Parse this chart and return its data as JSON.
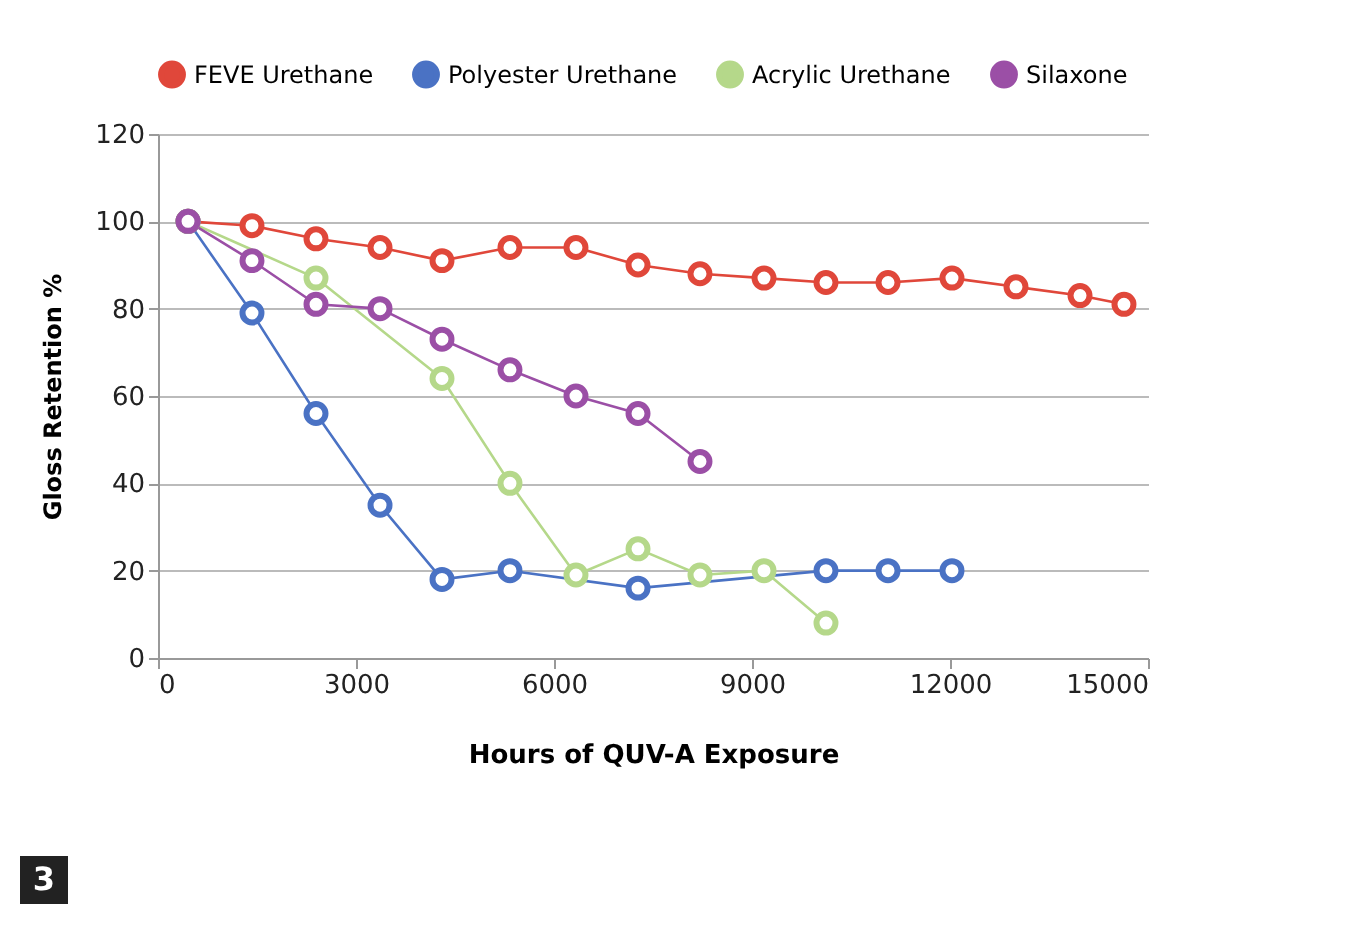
{
  "chart_data": {
    "type": "line",
    "xlabel": "Hours of QUV-A Exposure",
    "ylabel": "Gloss Retention %",
    "xlim": [
      0,
      15000
    ],
    "xticks": [
      0,
      3000,
      6000,
      9000,
      12000,
      15000
    ],
    "ylim": [
      0,
      120
    ],
    "yticks": [
      0,
      20,
      40,
      60,
      80,
      100,
      120
    ],
    "grid": "y",
    "legend": "top",
    "marker": "circle",
    "line_style": "solid",
    "annotations": [
      "3"
    ],
    "series": [
      {
        "name": "FEVE Urethane",
        "color": "#e0473a",
        "x": [
          455,
          1424,
          2394,
          3364,
          4303,
          5333,
          6333,
          7273,
          8212,
          9182,
          10121,
          11061,
          12030,
          13000,
          13970,
          14636
        ],
        "values": [
          100,
          99,
          96,
          94,
          91,
          94,
          94,
          90,
          88,
          87,
          86,
          86,
          87,
          85,
          83,
          81
        ]
      },
      {
        "name": "Polyester Urethane",
        "color": "#4a72c4",
        "x": [
          455,
          1424,
          2394,
          3364,
          4303,
          5333,
          7273,
          10121,
          11061,
          12030
        ],
        "values": [
          100,
          79,
          56,
          35,
          18,
          20,
          16,
          20,
          20,
          20
        ]
      },
      {
        "name": "Acrylic Urethane",
        "color": "#b5d88a",
        "x": [
          455,
          2394,
          4303,
          5333,
          6333,
          7273,
          8212,
          9182,
          10121
        ],
        "values": [
          100,
          87,
          64,
          40,
          19,
          25,
          19,
          20,
          8
        ]
      },
      {
        "name": "Silaxone",
        "color": "#9b4fa6",
        "x": [
          455,
          1424,
          2394,
          3364,
          4303,
          5333,
          6333,
          7273,
          8212
        ],
        "values": [
          100,
          91,
          81,
          80,
          73,
          66,
          60,
          56,
          45
        ]
      }
    ]
  }
}
